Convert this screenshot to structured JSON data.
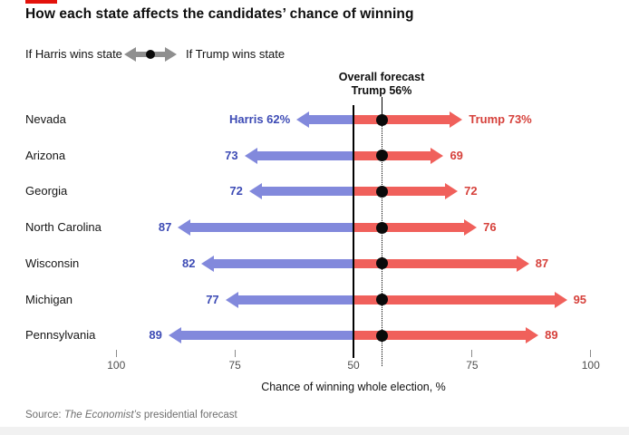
{
  "brand": {
    "accent_color": "#E3120B"
  },
  "header": {
    "title": "How each state affects the candidates’ chance of winning"
  },
  "legend": {
    "harris_label": "If Harris wins state",
    "trump_label": "If Trump wins state"
  },
  "annotation": {
    "line1": "Overall forecast",
    "line2": "Trump 56%"
  },
  "chart_data": {
    "type": "diverging-arrow-bar",
    "title": "How each state affects the candidates’ chance of winning",
    "categories": [
      "Nevada",
      "Arizona",
      "Georgia",
      "North Carolina",
      "Wisconsin",
      "Michigan",
      "Pennsylvania"
    ],
    "series": [
      {
        "name": "If Harris wins state",
        "side": "left",
        "values": [
          62,
          73,
          72,
          87,
          82,
          77,
          89
        ]
      },
      {
        "name": "If Trump wins state",
        "side": "right",
        "values": [
          73,
          69,
          72,
          76,
          87,
          95,
          89
        ]
      }
    ],
    "value_labels": {
      "harris": [
        "Harris 62%",
        "73",
        "72",
        "87",
        "82",
        "77",
        "89"
      ],
      "trump": [
        "Trump 73%",
        "69",
        "72",
        "76",
        "87",
        "95",
        "89"
      ]
    },
    "overall_forecast_value": 56,
    "center_value": 50,
    "axis_ticks": [
      {
        "label": "100",
        "value": 100,
        "side": "left"
      },
      {
        "label": "75",
        "value": 75,
        "side": "left"
      },
      {
        "label": "50",
        "value": 50,
        "side": "center"
      },
      {
        "label": "75",
        "value": 75,
        "side": "right"
      },
      {
        "label": "100",
        "value": 100,
        "side": "right"
      }
    ],
    "xlabel": "Chance of winning whole election, %",
    "legend_position": "top-left",
    "colors": {
      "harris_bar": "#8289DC",
      "harris_text": "#3D4BB5",
      "trump_bar": "#F0605B",
      "trump_text": "#D6413B",
      "forecast_dot": "#0A0A0A"
    }
  },
  "source": {
    "prefix": "Source: ",
    "italic": "The Economist’s",
    "suffix": " presidential forecast"
  }
}
